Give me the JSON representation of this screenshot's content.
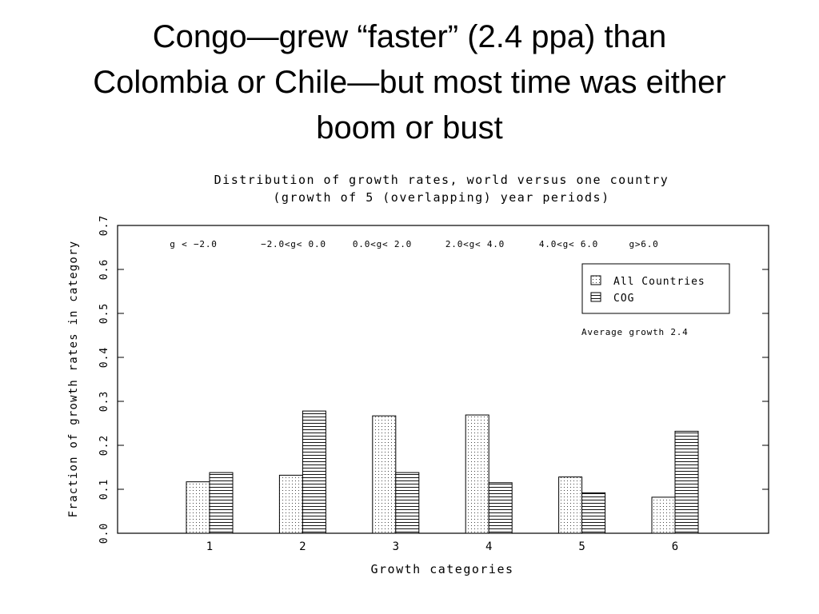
{
  "slide": {
    "title_lines": [
      "Congo—grew “faster” (2.4 ppa) than",
      "Colombia or Chile—but most time was either",
      "boom or bust"
    ]
  },
  "chart_data": {
    "type": "bar",
    "title": "Distribution of growth rates, world versus one country",
    "subtitle": "(growth of 5 (overlapping) year periods)",
    "xlabel": "Growth categories",
    "ylabel": "Fraction of growth rates in category",
    "categories": [
      "1",
      "2",
      "3",
      "4",
      "5",
      "6"
    ],
    "category_ranges": [
      "g < −2.0",
      "−2.0<g< 0.0",
      "0.0<g< 2.0",
      "2.0<g< 4.0",
      "4.0<g< 6.0",
      "g>6.0"
    ],
    "series": [
      {
        "name": "All Countries",
        "pattern": "dotted",
        "values": [
          0.117,
          0.132,
          0.267,
          0.269,
          0.128,
          0.082
        ]
      },
      {
        "name": "COG",
        "pattern": "horizontal-lines",
        "values": [
          0.138,
          0.278,
          0.138,
          0.115,
          0.092,
          0.232
        ]
      }
    ],
    "ylim": [
      0.0,
      0.7
    ],
    "yticks": [
      "0.0",
      "0.1",
      "0.2",
      "0.3",
      "0.4",
      "0.5",
      "0.6",
      "0.7"
    ],
    "ytick_values": [
      0.0,
      0.1,
      0.2,
      0.3,
      0.4,
      0.5,
      0.6,
      0.7
    ],
    "legend_position": "top-right",
    "annotation": "Average growth 2.4",
    "grid": false
  }
}
